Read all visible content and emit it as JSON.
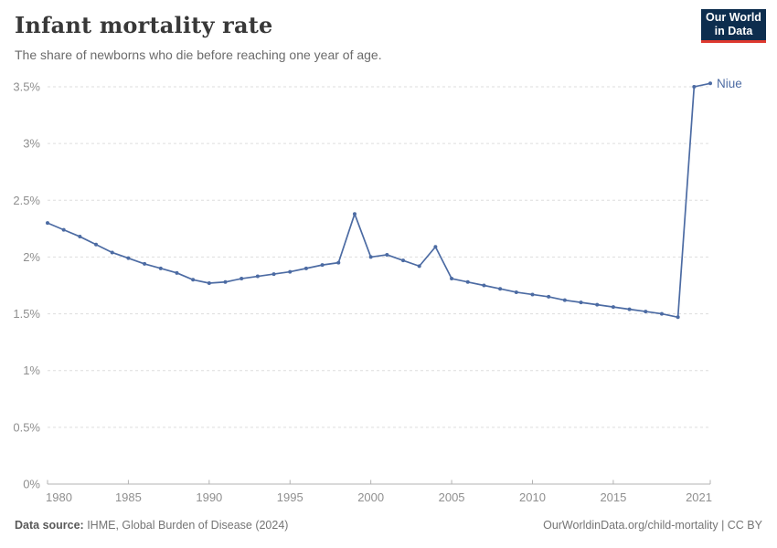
{
  "header": {
    "title": "Infant mortality rate",
    "subtitle": "The share of newborns who die before reaching one year of age.",
    "logo": {
      "line1": "Our World",
      "line2": "in Data",
      "bg_color": "#0d2d4e",
      "accent_color": "#de392f"
    }
  },
  "footer": {
    "source_label": "Data source:",
    "source_text": " IHME, Global Burden of Disease (2024)",
    "right_text": "OurWorldinData.org/child-mortality | CC BY"
  },
  "chart_data": {
    "type": "line",
    "title": "Infant mortality rate",
    "subtitle": "The share of newborns who die before reaching one year of age.",
    "unit": "%",
    "grid": "horizontal-dashed",
    "legend_position": "end-of-line-label",
    "ylim": [
      0,
      3.5
    ],
    "yticks": [
      0,
      0.5,
      1,
      1.5,
      2,
      2.5,
      3,
      3.5
    ],
    "ytick_labels": [
      "0%",
      "0.5%",
      "1%",
      "1.5%",
      "2%",
      "2.5%",
      "3%",
      "3.5%"
    ],
    "xlim": [
      1980,
      2021
    ],
    "xticks": [
      1980,
      1985,
      1990,
      1995,
      2000,
      2005,
      2010,
      2015,
      2021
    ],
    "xtick_labels": [
      "1980",
      "1985",
      "1990",
      "1995",
      "2000",
      "2005",
      "2010",
      "2015",
      "2021"
    ],
    "x": [
      1980,
      1981,
      1982,
      1983,
      1984,
      1985,
      1986,
      1987,
      1988,
      1989,
      1990,
      1991,
      1992,
      1993,
      1994,
      1995,
      1996,
      1997,
      1998,
      1999,
      2000,
      2001,
      2002,
      2003,
      2004,
      2005,
      2006,
      2007,
      2008,
      2009,
      2010,
      2011,
      2012,
      2013,
      2014,
      2015,
      2016,
      2017,
      2018,
      2019,
      2020,
      2021
    ],
    "series": [
      {
        "name": "Niue",
        "color": "#4c6ba3",
        "values": [
          2.3,
          2.24,
          2.18,
          2.11,
          2.04,
          1.99,
          1.94,
          1.9,
          1.86,
          1.8,
          1.77,
          1.78,
          1.81,
          1.83,
          1.85,
          1.87,
          1.9,
          1.93,
          1.95,
          2.38,
          2.0,
          2.02,
          1.97,
          1.92,
          2.09,
          1.81,
          1.78,
          1.75,
          1.72,
          1.69,
          1.67,
          1.65,
          1.62,
          1.6,
          1.58,
          1.56,
          1.54,
          1.52,
          1.5,
          1.47,
          3.5,
          3.53
        ]
      }
    ],
    "colors": {
      "grid": "#dddddd",
      "axis_line": "#b3b3b3",
      "tick_label": "#8f8f8f"
    }
  }
}
